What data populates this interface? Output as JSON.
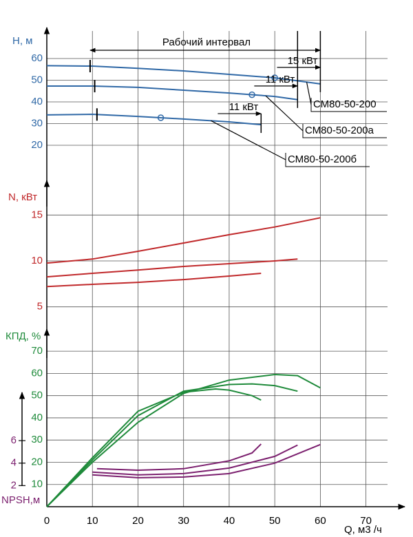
{
  "x_axis": {
    "label": "Q, м3 /ч",
    "xlim": [
      0,
      77
    ],
    "xticks": [
      0,
      10,
      20,
      30,
      40,
      50,
      60,
      70
    ]
  },
  "interval": {
    "label": "Рабочий интервал",
    "x": [
      9.5,
      60
    ]
  },
  "chart_data": [
    {
      "type": "line",
      "ylabel": "H, м",
      "ylim": [
        10,
        70
      ],
      "yticks": [
        20,
        30,
        40,
        50,
        60
      ],
      "color": "#2f68a6",
      "series": [
        {
          "name": "СМ80-50-200",
          "x": [
            0,
            10,
            20,
            30,
            40,
            50,
            60
          ],
          "values": [
            56.7,
            56.5,
            55.5,
            54.3,
            52.7,
            51.1,
            48.3
          ],
          "min_q": 9.5,
          "op_point": 50,
          "max_q": 60,
          "power_label": "15 кВт"
        },
        {
          "name": "СМ80-50-200а",
          "x": [
            0,
            10,
            20,
            30,
            40,
            50,
            55
          ],
          "values": [
            47.3,
            47.3,
            46.7,
            45.4,
            44.1,
            42.5,
            41.0
          ],
          "min_q": 10.5,
          "op_point": 45,
          "max_q": 55,
          "power_label": "11 кВт"
        },
        {
          "name": "СМ80-50-200б",
          "x": [
            0,
            10,
            20,
            30,
            40,
            47
          ],
          "values": [
            34.0,
            34.3,
            33.3,
            32.1,
            30.8,
            29.5
          ],
          "min_q": 11,
          "op_point": 25,
          "max_q": 47,
          "power_label": "11 кВт"
        }
      ]
    },
    {
      "type": "line",
      "ylabel": "N, кВт",
      "ylim": [
        4,
        16
      ],
      "yticks": [
        5,
        10,
        15
      ],
      "color": "#c0282a",
      "series": [
        {
          "x": [
            0,
            10,
            20,
            30,
            40,
            50,
            60
          ],
          "values": [
            9.77,
            10.2,
            11.05,
            11.95,
            12.86,
            13.7,
            14.7
          ]
        },
        {
          "x": [
            0,
            10,
            20,
            30,
            40,
            50,
            55
          ],
          "values": [
            8.27,
            8.65,
            9.0,
            9.4,
            9.7,
            10.0,
            10.2
          ]
        },
        {
          "x": [
            0,
            10,
            20,
            30,
            40,
            47
          ],
          "values": [
            7.2,
            7.45,
            7.67,
            7.97,
            8.35,
            8.65
          ]
        }
      ]
    },
    {
      "type": "line",
      "ylabel": "КПД, %",
      "ylim": [
        0,
        75
      ],
      "yticks": [
        10,
        20,
        30,
        40,
        50,
        60,
        70
      ],
      "color": "#1e8a3a",
      "series": [
        {
          "x": [
            0,
            10,
            20,
            30,
            40,
            50,
            55,
            60
          ],
          "values": [
            0,
            20,
            38,
            51,
            57,
            59.5,
            59,
            53.5
          ]
        },
        {
          "x": [
            0,
            10,
            20,
            30,
            40,
            45,
            50,
            55
          ],
          "values": [
            0,
            21,
            41,
            52,
            55,
            55.3,
            54.5,
            52
          ]
        },
        {
          "x": [
            0,
            10,
            20,
            30,
            37,
            40,
            45,
            47
          ],
          "values": [
            0,
            22,
            43,
            51.5,
            53,
            52.5,
            50,
            48
          ]
        }
      ]
    },
    {
      "type": "line",
      "ylabel": "NPSH,м",
      "ylim": [
        0,
        9
      ],
      "yticks": [
        2,
        4,
        6
      ],
      "color": "#7b1f6e",
      "series": [
        {
          "x": [
            11,
            20,
            30,
            40,
            45,
            47
          ],
          "values": [
            3.5,
            3.37,
            3.5,
            4.2,
            4.9,
            5.7
          ]
        },
        {
          "x": [
            10,
            20,
            30,
            40,
            50,
            55
          ],
          "values": [
            3.2,
            2.95,
            3.07,
            3.56,
            4.6,
            5.6
          ]
        },
        {
          "x": [
            10,
            20,
            30,
            40,
            50,
            60
          ],
          "values": [
            2.95,
            2.7,
            2.76,
            3.07,
            4.0,
            5.65
          ]
        }
      ]
    }
  ]
}
